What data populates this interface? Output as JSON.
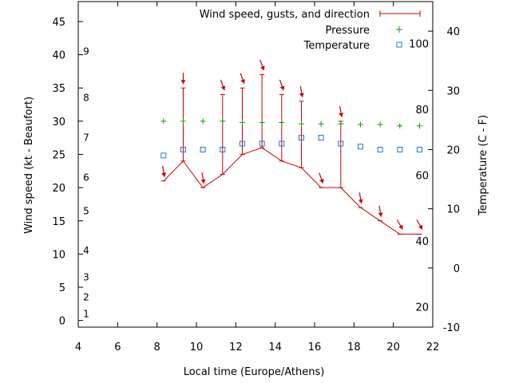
{
  "chart_data": {
    "type": "line",
    "xlabel": "Local time (Europe/Athens)",
    "ylabel_left": "Wind speed (kt - Beaufort)",
    "ylabel_right": "Temperature (C - F)",
    "x_range": [
      4,
      22
    ],
    "y_left_range": [
      -1,
      48
    ],
    "y_right_range": [
      -10,
      45
    ],
    "x_ticks": [
      "4",
      "6",
      "8",
      "10",
      "12",
      "14",
      "16",
      "18",
      "20",
      "22"
    ],
    "y_left_ticks": [
      "0",
      "5",
      "10",
      "15",
      "20",
      "25",
      "30",
      "35",
      "40",
      "45"
    ],
    "y_right_ticks": [
      "-10",
      "0",
      "10",
      "20",
      "30",
      "40"
    ],
    "beaufort_labels": [
      "1",
      "2",
      "3",
      "4",
      "5",
      "6",
      "7",
      "8",
      "9"
    ],
    "fahrenheit_labels": [
      "20",
      "40",
      "60",
      "80",
      "100"
    ],
    "legend": {
      "position": "top-right",
      "wind": "Wind speed, gusts, and direction",
      "pressure": "Pressure",
      "temperature": "Temperature"
    },
    "colors": {
      "wind": "#cc0000",
      "pressure": "#00aa00",
      "temperature": "#1f77d0"
    },
    "series": {
      "wind": {
        "x": [
          8.33,
          9.33,
          10.33,
          11.33,
          12.33,
          13.33,
          14.33,
          15.33,
          16.33,
          17.33,
          18.33,
          19.33,
          20.33,
          21.33
        ],
        "speed": [
          21,
          24,
          20,
          22,
          25,
          26,
          24,
          23,
          20,
          20,
          17,
          15,
          13,
          13
        ],
        "gust": [
          21,
          35,
          20,
          34,
          35,
          37,
          34,
          33,
          20,
          30,
          17,
          15,
          13,
          13
        ]
      },
      "direction": {
        "x": [
          8.33,
          9.33,
          10.33,
          11.33,
          12.33,
          13.33,
          14.33,
          15.33,
          16.33,
          17.33,
          18.33,
          19.33,
          20.33,
          21.33
        ],
        "bearing_deg": [
          350,
          0,
          350,
          340,
          340,
          340,
          340,
          350,
          340,
          350,
          350,
          350,
          330,
          330
        ]
      },
      "pressure": {
        "x": [
          8.33,
          9.33,
          10.33,
          11.33,
          12.33,
          13.33,
          14.33,
          15.33,
          16.33,
          17.33,
          18.33,
          19.33,
          20.33,
          21.33
        ],
        "values": [
          30,
          30,
          30,
          30,
          29.8,
          29.8,
          29.8,
          29.6,
          29.6,
          29.6,
          29.5,
          29.5,
          29.3,
          29.3
        ]
      },
      "temperature": {
        "x": [
          8.33,
          9.33,
          10.33,
          11.33,
          12.33,
          13.33,
          14.33,
          15.33,
          16.33,
          17.33,
          18.33,
          19.33,
          20.33,
          21.33
        ],
        "values": [
          19,
          20,
          20,
          20,
          21,
          21,
          21,
          22,
          22,
          21,
          20.5,
          20,
          20,
          20
        ]
      }
    }
  }
}
